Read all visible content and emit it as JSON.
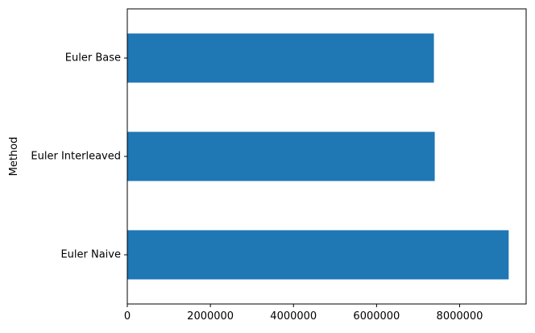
{
  "chart_data": {
    "type": "bar",
    "orientation": "horizontal",
    "title": "",
    "xlabel": "",
    "ylabel": "Method",
    "categories": [
      "Euler Naive",
      "Euler Interleaved",
      "Euler Base"
    ],
    "values": [
      9180000,
      7400000,
      7380000
    ],
    "xlim": [
      0,
      9600000
    ],
    "xticks": [
      0,
      2000000,
      4000000,
      6000000,
      8000000
    ],
    "xtick_labels": [
      "0",
      "2000000",
      "4000000",
      "6000000",
      "8000000"
    ],
    "bar_color": "#1f77b4",
    "grid": false,
    "legend": "none"
  }
}
